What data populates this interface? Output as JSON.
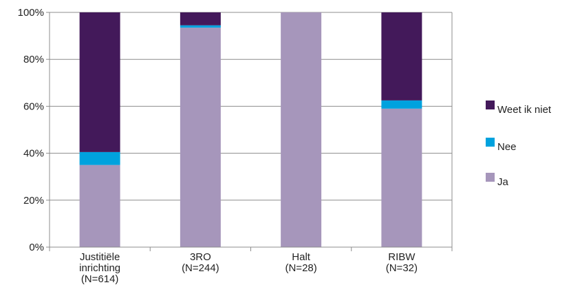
{
  "chart_data": {
    "type": "bar",
    "stacked": true,
    "categories": [
      [
        "Justitiële",
        "inrichting",
        "(N=614)"
      ],
      [
        "3RO",
        "(N=244)"
      ],
      [
        "Halt",
        "(N=28)"
      ],
      [
        "RIBW",
        "(N=32)"
      ]
    ],
    "series": [
      {
        "name": "Ja",
        "color": "#a696bb",
        "values": [
          35,
          93.5,
          100,
          59
        ]
      },
      {
        "name": "Nee",
        "color": "#00a2de",
        "values": [
          5.5,
          1,
          0,
          3.5
        ]
      },
      {
        "name": "Weet ik niet",
        "color": "#43195a",
        "values": [
          59.5,
          5.5,
          0,
          37.5
        ]
      }
    ],
    "ylim": [
      0,
      100
    ],
    "yticks": [
      "0%",
      "20%",
      "40%",
      "60%",
      "80%",
      "100%"
    ],
    "grid": true,
    "legend_position": "right"
  }
}
